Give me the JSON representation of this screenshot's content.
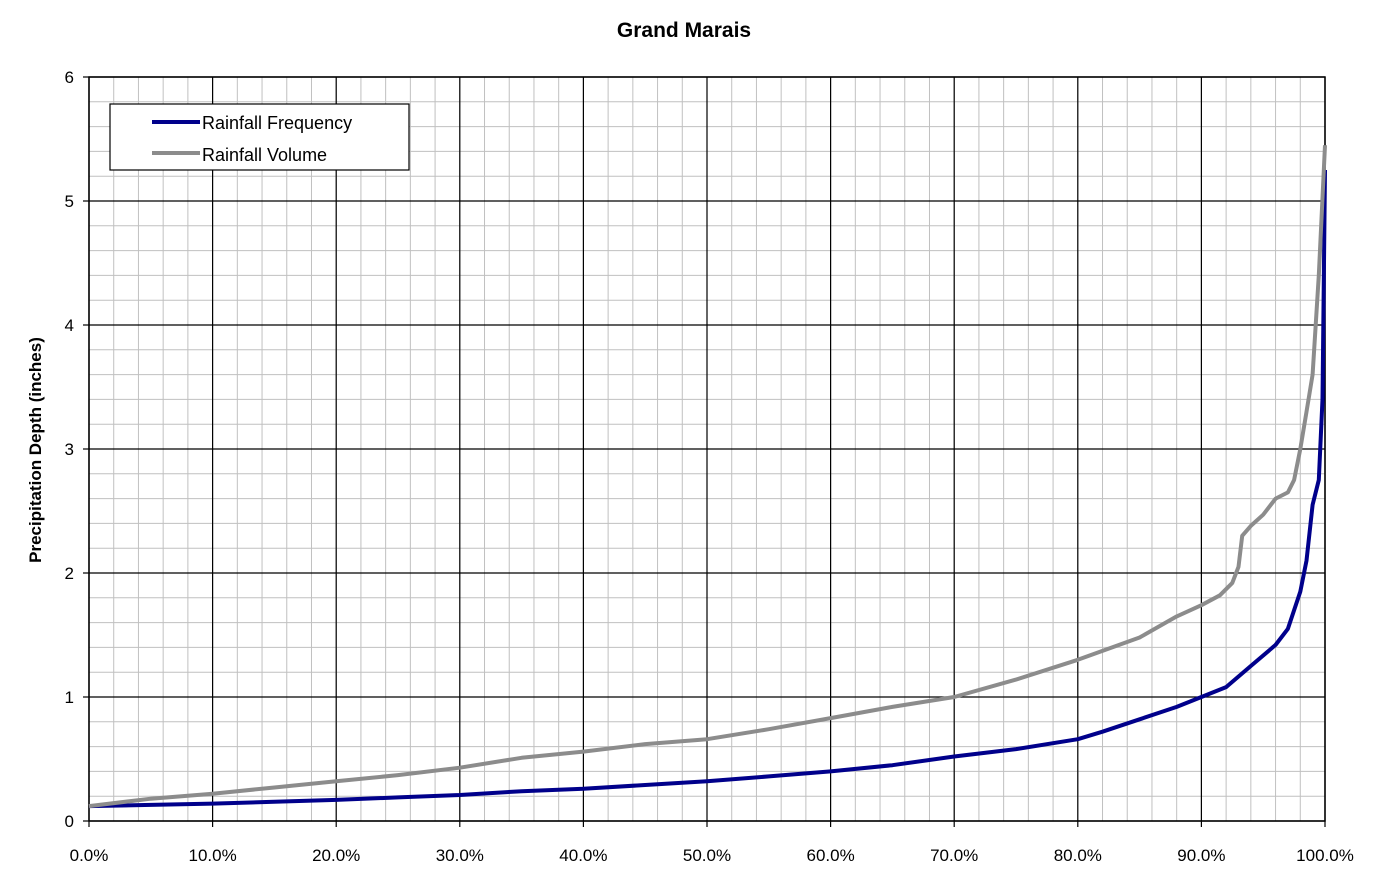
{
  "chart_data": {
    "type": "line",
    "title": "Grand Marais",
    "xlabel": "",
    "ylabel": "Precipitation Depth (inches)",
    "xlim": [
      0,
      100
    ],
    "ylim": [
      0,
      6
    ],
    "x_ticks": [
      0,
      10,
      20,
      30,
      40,
      50,
      60,
      70,
      80,
      90,
      100
    ],
    "x_tick_labels": [
      "0.0%",
      "10.0%",
      "20.0%",
      "30.0%",
      "40.0%",
      "50.0%",
      "60.0%",
      "70.0%",
      "80.0%",
      "90.0%",
      "100.0%"
    ],
    "y_ticks": [
      0,
      1,
      2,
      3,
      4,
      5,
      6
    ],
    "y_tick_labels": [
      "0",
      "1",
      "2",
      "3",
      "4",
      "5",
      "6"
    ],
    "grid": {
      "major": true,
      "minor": true,
      "minor_x_step": 2,
      "minor_y_step": 0.2
    },
    "legend": {
      "position": "top-left",
      "entries": [
        "Rainfall Frequency",
        "Rainfall Volume"
      ]
    },
    "series": [
      {
        "name": "Rainfall Frequency",
        "color": "#00008b",
        "x": [
          0,
          5,
          10,
          15,
          20,
          25,
          30,
          35,
          40,
          45,
          50,
          55,
          60,
          65,
          70,
          75,
          80,
          82,
          85,
          88,
          90,
          92,
          94,
          96,
          97,
          98,
          98.5,
          99,
          99.5,
          99.8,
          100
        ],
        "y": [
          0.12,
          0.13,
          0.14,
          0.155,
          0.17,
          0.19,
          0.21,
          0.24,
          0.26,
          0.29,
          0.32,
          0.36,
          0.4,
          0.45,
          0.52,
          0.58,
          0.66,
          0.72,
          0.82,
          0.92,
          1.0,
          1.08,
          1.25,
          1.42,
          1.55,
          1.85,
          2.1,
          2.55,
          2.75,
          3.4,
          5.25
        ]
      },
      {
        "name": "Rainfall Volume",
        "color": "#8c8c8c",
        "x": [
          0,
          5,
          10,
          15,
          20,
          25,
          30,
          35,
          40,
          45,
          50,
          55,
          60,
          65,
          70,
          75,
          80,
          85,
          88,
          90,
          91.5,
          92.5,
          93,
          93.3,
          94,
          95,
          96,
          97,
          97.5,
          98,
          98.5,
          99,
          99.5,
          100
        ],
        "y": [
          0.12,
          0.18,
          0.22,
          0.27,
          0.32,
          0.37,
          0.43,
          0.51,
          0.56,
          0.62,
          0.66,
          0.74,
          0.83,
          0.92,
          1.0,
          1.14,
          1.3,
          1.48,
          1.65,
          1.74,
          1.82,
          1.92,
          2.05,
          2.3,
          2.38,
          2.47,
          2.6,
          2.65,
          2.75,
          3.0,
          3.3,
          3.6,
          4.4,
          5.45
        ]
      }
    ]
  }
}
